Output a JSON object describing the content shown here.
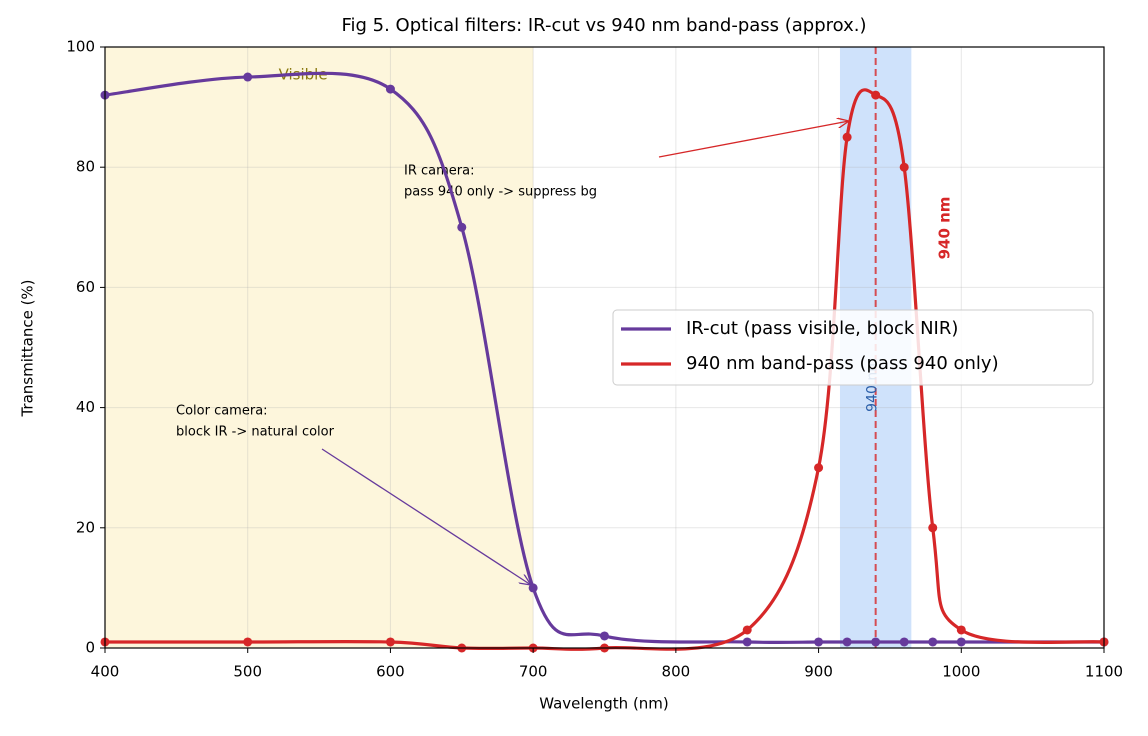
{
  "chart_data": {
    "type": "line",
    "title": "Fig 5. Optical filters: IR-cut vs 940 nm band-pass (approx.)",
    "x_label": "Wavelength (nm)",
    "y_label": "Transmittance (%)",
    "x": [
      400,
      500,
      600,
      650,
      700,
      750,
      850,
      900,
      920,
      940,
      960,
      980,
      1000,
      1100
    ],
    "series": [
      {
        "name": "IR-cut (pass visible, block NIR)",
        "color": "#663a9c",
        "values": [
          92,
          95,
          93,
          70,
          10,
          2,
          1,
          1,
          1,
          1,
          1,
          1,
          1,
          1
        ]
      },
      {
        "name": "940 nm band-pass (pass 940 only)",
        "color": "#d62728",
        "values": [
          1,
          1,
          1,
          0,
          0,
          0,
          3,
          30,
          85,
          92,
          80,
          20,
          3,
          1
        ]
      }
    ],
    "xlim": [
      400,
      1100
    ],
    "ylim": [
      0,
      100
    ],
    "xticks": [
      400,
      500,
      600,
      700,
      800,
      900,
      1000,
      1100
    ],
    "yticks": [
      0,
      20,
      40,
      60,
      80,
      100
    ],
    "grid": true,
    "legend": "center right",
    "visible_span": {
      "label": "Visible",
      "range": [
        400,
        700
      ],
      "color": "#fdf6dc"
    },
    "band": {
      "label": "940 nm",
      "range": [
        915,
        965
      ],
      "center": 940,
      "color": "#cfe2fb"
    },
    "band_label": "940 nm",
    "annotations": [
      {
        "lines": [
          "IR camera:",
          "pass 940 only -> suppress bg"
        ]
      },
      {
        "lines": [
          "Color camera:",
          "block IR -> natural color"
        ]
      }
    ]
  }
}
